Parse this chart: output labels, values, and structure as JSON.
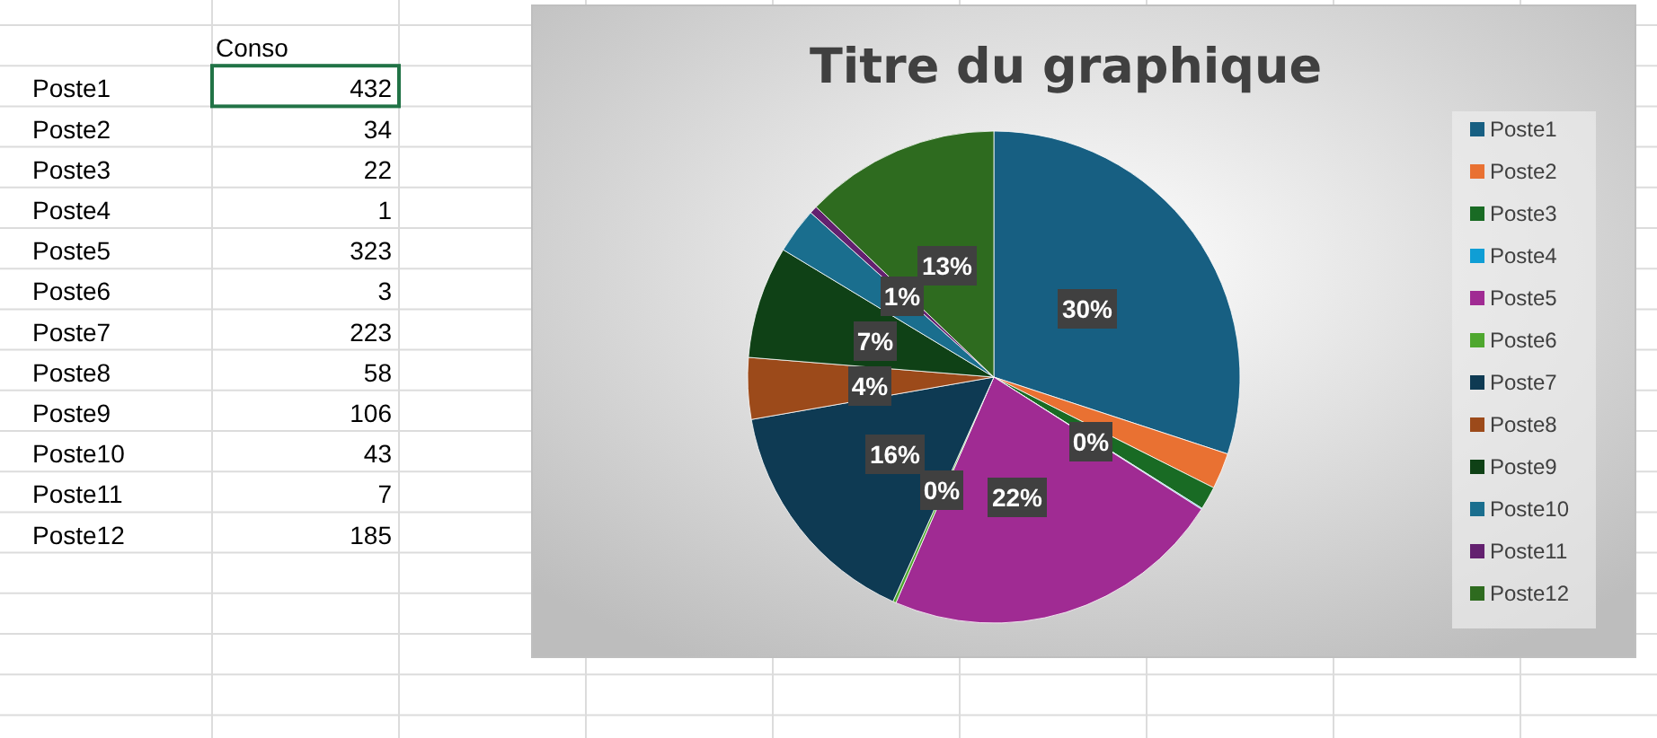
{
  "chart_data": [
    {
      "type": "other",
      "title": "Conso",
      "categories": [
        "Poste1",
        "Poste2",
        "Poste3",
        "Poste4",
        "Poste5",
        "Poste6",
        "Poste7",
        "Poste8",
        "Poste9",
        "Poste10",
        "Poste11",
        "Poste12"
      ],
      "values": [
        432,
        34,
        22,
        1,
        323,
        3,
        223,
        58,
        106,
        43,
        7,
        185
      ],
      "data_labels": true
    },
    {
      "type": "pie",
      "title": "Titre du graphique",
      "categories": [
        "Poste1",
        "Poste2",
        "Poste3",
        "Poste4",
        "Poste5",
        "Poste6",
        "Poste7",
        "Poste8",
        "Poste9",
        "Poste10",
        "Poste11",
        "Poste12"
      ],
      "values": [
        30.06,
        2.37,
        1.53,
        0.07,
        22.48,
        0.21,
        15.52,
        4.04,
        7.38,
        2.99,
        0.51,
        12.84
      ],
      "colors": [
        "#175f82",
        "#e97132",
        "#196b24",
        "#0f9ed5",
        "#a02b93",
        "#4ea72e",
        "#0e3a53",
        "#9c4a1a",
        "#0f4116",
        "#1a6e8e",
        "#63206f",
        "#2e6b1f"
      ],
      "value_labels": [
        "30%",
        null,
        null,
        "0%",
        "22%",
        "0%",
        "16%",
        "4%",
        "7%",
        null,
        "1%",
        "13%"
      ],
      "legend": "right"
    }
  ]
}
